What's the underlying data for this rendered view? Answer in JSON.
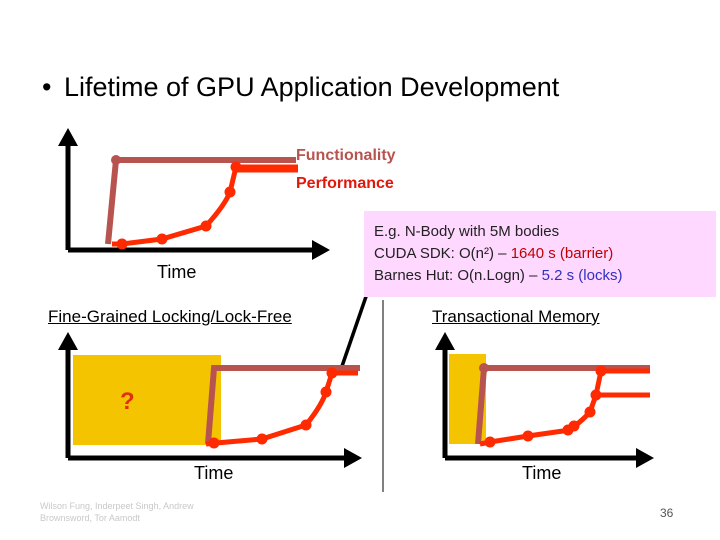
{
  "bullet": {
    "text": "Lifetime of GPU Application Development"
  },
  "legend": {
    "functionality": "Functionality",
    "performance": "Performance"
  },
  "axes": {
    "time_top": "Time",
    "time_left": "Time",
    "time_right": "Time"
  },
  "callout": {
    "line1": "E.g. N-Body with 5M bodies",
    "line2_prefix": "CUDA SDK: O(n²) – ",
    "line2_value": "1640 s (barrier)",
    "line3_prefix": "Barnes Hut: O(n.Logn) – ",
    "line3_value": "5.2 s (locks)"
  },
  "titles": {
    "left": "Fine-Grained Locking/Lock-Free",
    "right": "Transactional Memory"
  },
  "question": "?",
  "footer": {
    "authors": "Wilson Fung, Inderpeet Singh, Andrew Brownsword, Tor Aamodt",
    "page": "36"
  },
  "colors": {
    "functionality": "#b85450",
    "performance": "#ff2a00",
    "shade": "#f5c400",
    "callout_bg": "#ffd8ff"
  }
}
